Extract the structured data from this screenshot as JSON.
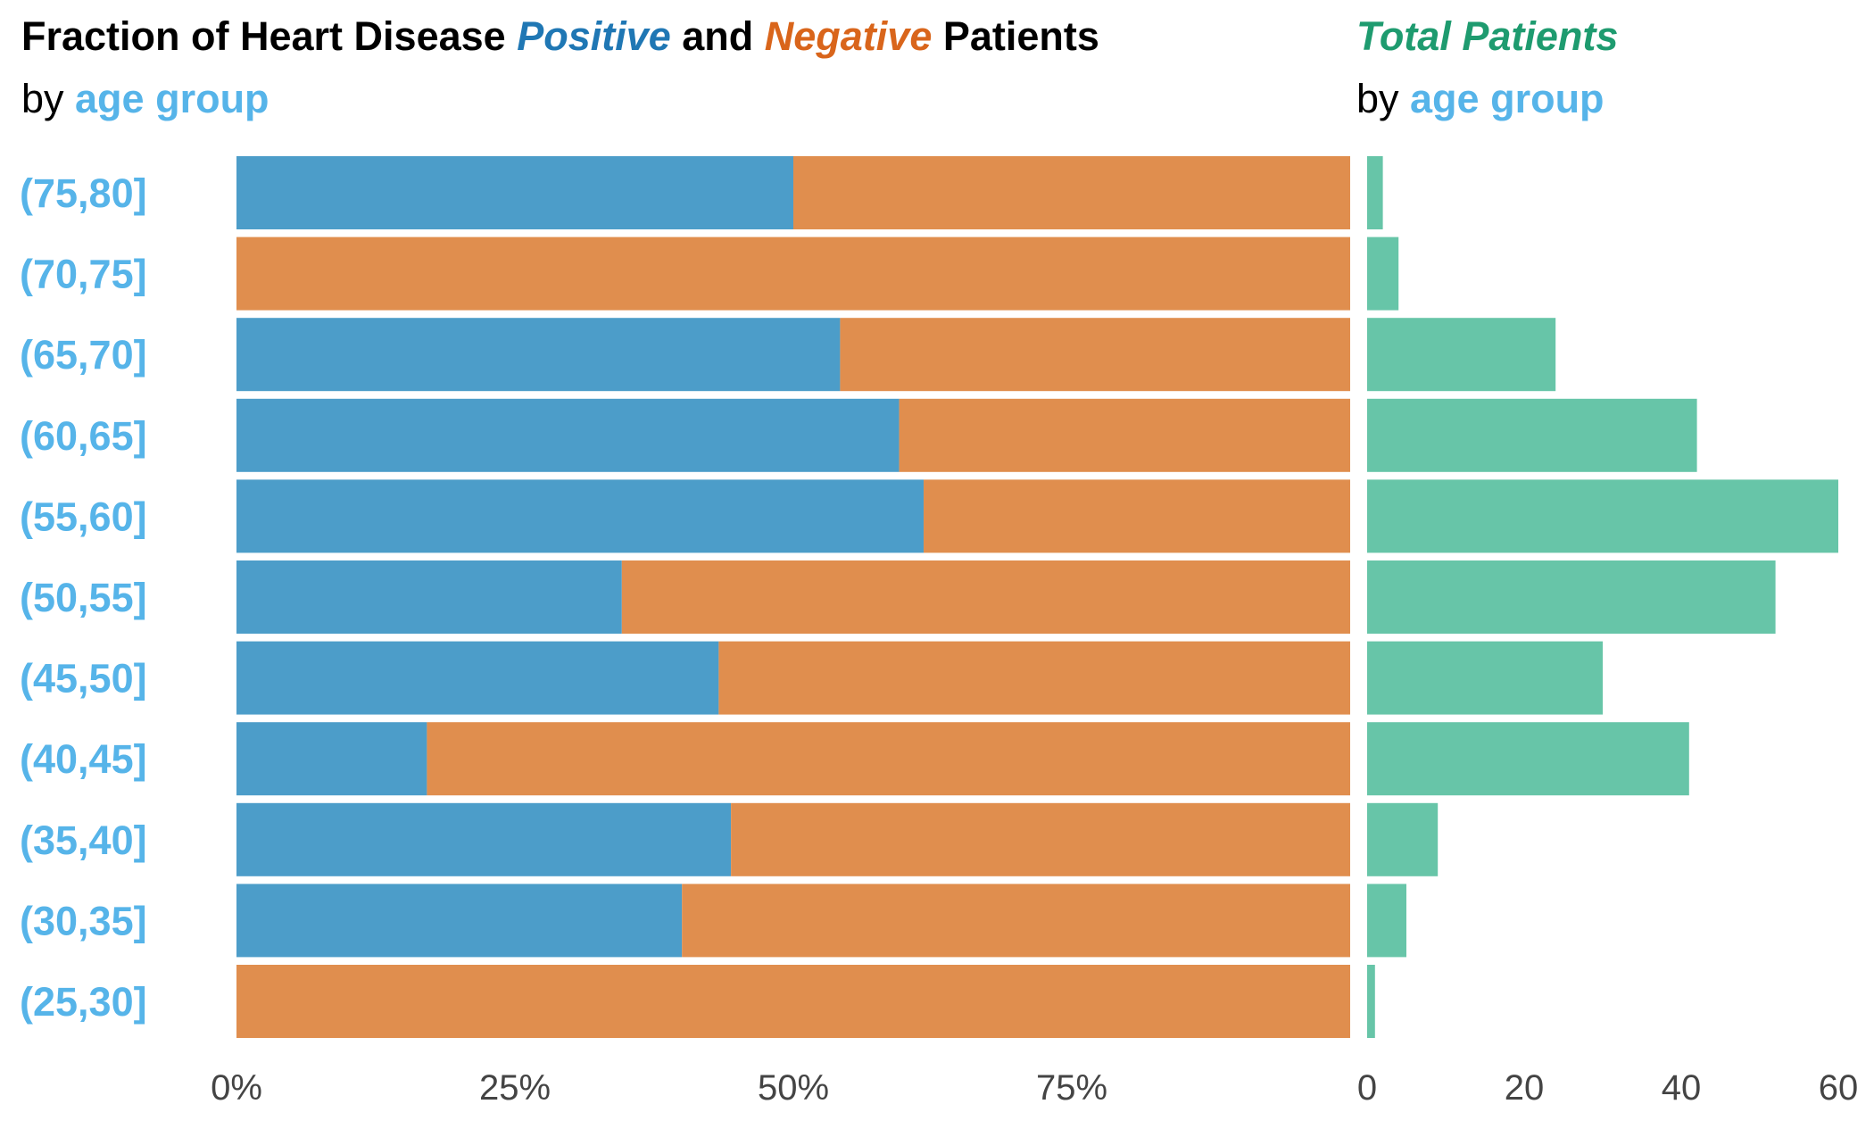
{
  "title": {
    "left": {
      "prefix": "Fraction of Heart Disease ",
      "positive": "Positive",
      "mid": " and ",
      "negative": "Negative",
      "suffix": " Patients",
      "sub_prefix": "by ",
      "sub_highlight": "age group"
    },
    "right": {
      "title": "Total Patients",
      "sub_prefix": "by ",
      "sub_highlight": "age group"
    }
  },
  "colors": {
    "positive": "#4c9dc9",
    "negative": "#e08e4e",
    "total": "#67c5a8",
    "positive_text": "#1f77b4",
    "negative_text": "#d9651b",
    "total_text": "#1e9b6f",
    "category_label": "#56b4e9",
    "tick_label": "#444444",
    "title": "#000000"
  },
  "chart_data": [
    {
      "type": "bar",
      "orientation": "horizontal",
      "stacked": true,
      "categories": [
        "(75,80]",
        "(70,75]",
        "(65,70]",
        "(60,65]",
        "(55,60]",
        "(50,55]",
        "(45,50]",
        "(40,45]",
        "(35,40]",
        "(30,35]",
        "(25,30]"
      ],
      "series": [
        {
          "name": "Positive",
          "values": [
            0.5,
            0.0,
            0.542,
            0.595,
            0.617,
            0.346,
            0.433,
            0.171,
            0.444,
            0.4,
            0.0
          ]
        },
        {
          "name": "Negative",
          "values": [
            0.5,
            1.0,
            0.458,
            0.405,
            0.383,
            0.654,
            0.567,
            0.829,
            0.556,
            0.6,
            1.0
          ]
        }
      ],
      "xlim": [
        0,
        1
      ],
      "xticks": [
        0,
        0.25,
        0.5,
        0.75
      ],
      "xtick_labels": [
        "0%",
        "25%",
        "50%",
        "75%"
      ],
      "grid": false
    },
    {
      "type": "bar",
      "orientation": "horizontal",
      "categories": [
        "(75,80]",
        "(70,75]",
        "(65,70]",
        "(60,65]",
        "(55,60]",
        "(50,55]",
        "(45,50]",
        "(40,45]",
        "(35,40]",
        "(30,35]",
        "(25,30]"
      ],
      "values": [
        2,
        4,
        24,
        42,
        60,
        52,
        30,
        41,
        9,
        5,
        1
      ],
      "xlim": [
        0,
        60
      ],
      "xticks": [
        0,
        20,
        40,
        60
      ],
      "xtick_labels": [
        "0",
        "20",
        "40",
        "60"
      ],
      "grid": false
    }
  ]
}
